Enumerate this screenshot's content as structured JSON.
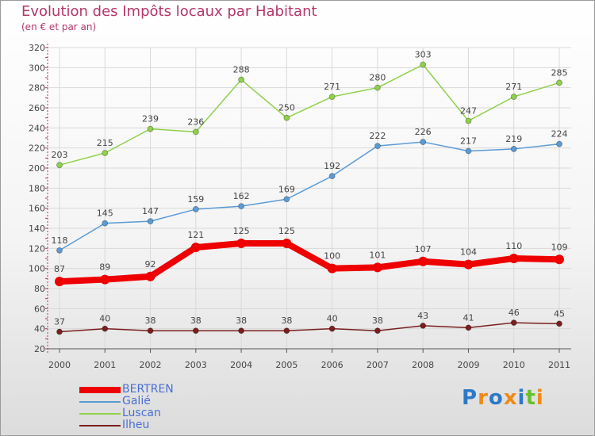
{
  "header": {
    "title": "Evolution des Impôts locaux par Habitant",
    "subtitle": "(en € et par an)"
  },
  "logo": {
    "letters": [
      "P",
      "r",
      "o",
      "x",
      "i",
      "t",
      "i"
    ]
  },
  "colors": {
    "text_accent": "#b5366a",
    "axis": "#c03060",
    "legend_text": "#4a6fd3",
    "logo": [
      "#2e79c7",
      "#f08a17",
      "#2e79c7",
      "#f08a17",
      "#2e79c7",
      "#6bbf2e",
      "#f08a17"
    ]
  },
  "chart_data": {
    "type": "line",
    "title": "Evolution des Impôts locaux par Habitant",
    "subtitle": "(en € et par an)",
    "xlabel": "",
    "ylabel": "",
    "x": [
      "2000",
      "2001",
      "2002",
      "2003",
      "2004",
      "2005",
      "2006",
      "2007",
      "2008",
      "2009",
      "2010",
      "2011"
    ],
    "ylim": [
      20,
      320
    ],
    "yticks": [
      20,
      40,
      60,
      80,
      100,
      120,
      140,
      160,
      180,
      200,
      220,
      240,
      260,
      280,
      300,
      320
    ],
    "grid": true,
    "legend_position": "bottom-left",
    "series": [
      {
        "name": "BERTREN",
        "color": "#ee0000",
        "emphasis": true,
        "values": [
          87,
          89,
          92,
          121,
          125,
          125,
          100,
          101,
          107,
          104,
          110,
          109
        ]
      },
      {
        "name": "Galié",
        "color": "#5b9bd5",
        "emphasis": false,
        "values": [
          118,
          145,
          147,
          159,
          162,
          169,
          192,
          222,
          226,
          217,
          219,
          224
        ]
      },
      {
        "name": "Luscan",
        "color": "#8ed14a",
        "emphasis": false,
        "values": [
          203,
          215,
          239,
          236,
          288,
          250,
          271,
          280,
          303,
          247,
          271,
          285
        ]
      },
      {
        "name": "Ilheu",
        "color": "#7a1f1f",
        "emphasis": false,
        "values": [
          37,
          40,
          38,
          38,
          38,
          38,
          40,
          38,
          43,
          41,
          46,
          45
        ]
      }
    ]
  }
}
